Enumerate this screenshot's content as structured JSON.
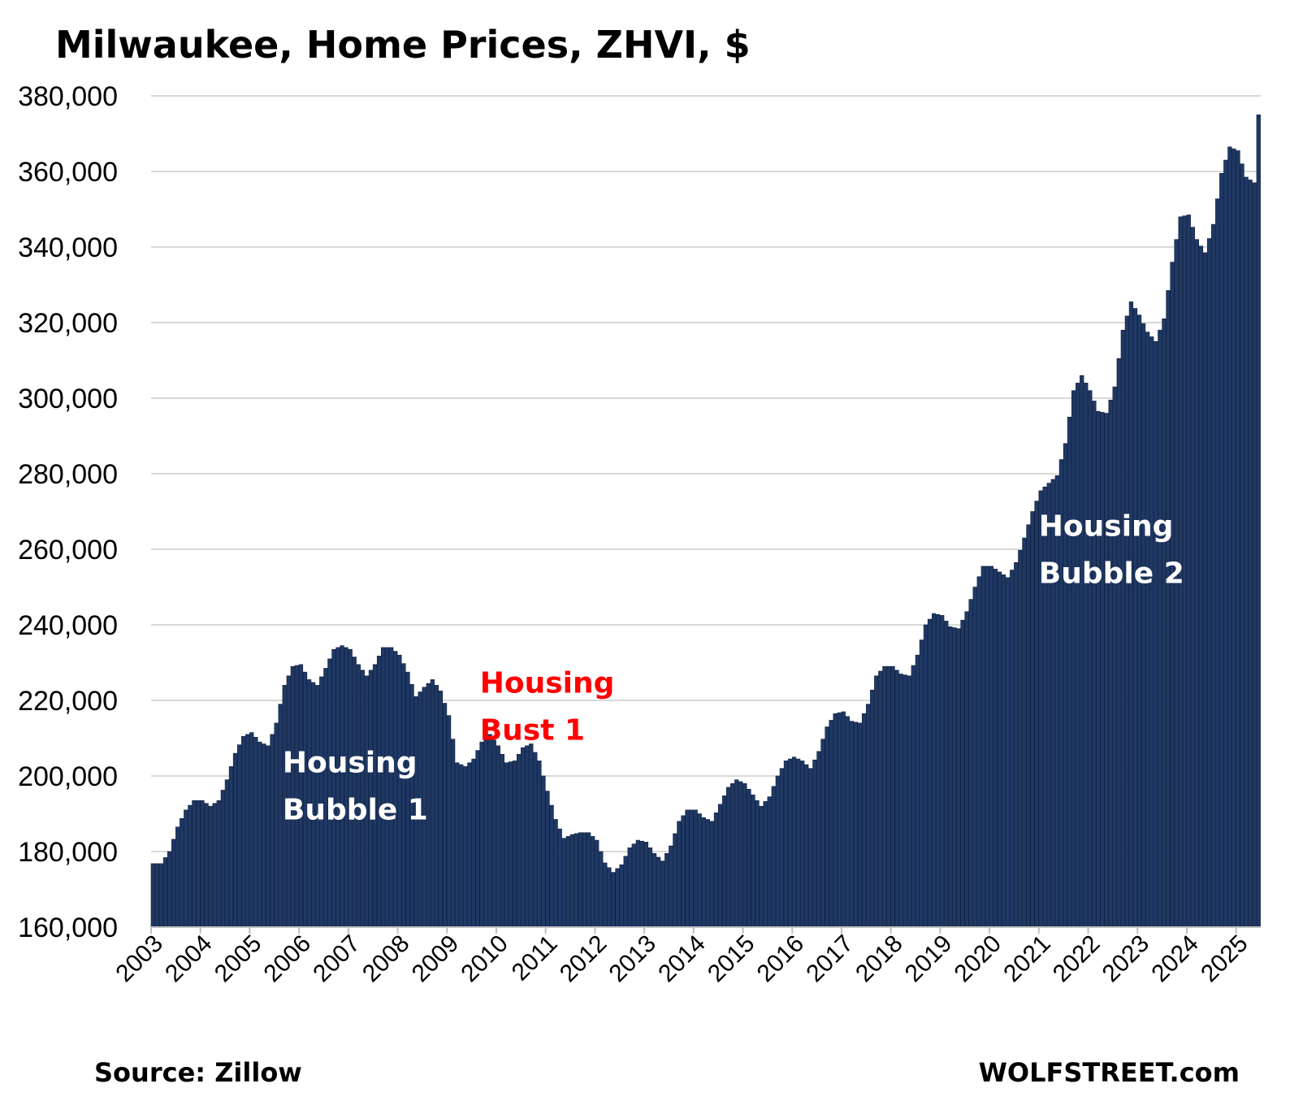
{
  "chart_data": {
    "type": "bar",
    "title": "Milwaukee, Home Prices, ZHVI, $",
    "ylim": [
      160000,
      380000
    ],
    "y_ticks": [
      160000,
      180000,
      200000,
      220000,
      240000,
      260000,
      280000,
      300000,
      320000,
      340000,
      360000,
      380000
    ],
    "y_tick_labels": [
      "160,000",
      "180,000",
      "200,000",
      "220,000",
      "240,000",
      "260,000",
      "280,000",
      "300,000",
      "320,000",
      "340,000",
      "360,000",
      "380,000"
    ],
    "x_tick_labels": [
      "2003",
      "2004",
      "2005",
      "2006",
      "2007",
      "2008",
      "2009",
      "2010",
      "2011",
      "2012",
      "2013",
      "2014",
      "2015",
      "2016",
      "2017",
      "2018",
      "2019",
      "2020",
      "2021",
      "2022",
      "2023",
      "2024",
      "2025"
    ],
    "grid": true,
    "legend": "none",
    "bar_color": "#1f3864",
    "x_range": [
      "2003-01",
      "2025-06"
    ],
    "series": [
      {
        "points": [
          [
            "2003-01",
            176800
          ],
          [
            "2003-03",
            176800
          ],
          [
            "2003-05",
            180000
          ],
          [
            "2003-07",
            186500
          ],
          [
            "2003-09",
            191000
          ],
          [
            "2003-11",
            193500
          ],
          [
            "2004-01",
            193500
          ],
          [
            "2004-03",
            192000
          ],
          [
            "2004-05",
            193500
          ],
          [
            "2004-07",
            199000
          ],
          [
            "2004-09",
            206000
          ],
          [
            "2004-11",
            210500
          ],
          [
            "2005-01",
            211500
          ],
          [
            "2005-03",
            209000
          ],
          [
            "2005-05",
            208000
          ],
          [
            "2005-07",
            214000
          ],
          [
            "2005-09",
            224000
          ],
          [
            "2005-11",
            229000
          ],
          [
            "2006-01",
            229500
          ],
          [
            "2006-03",
            225500
          ],
          [
            "2006-05",
            224000
          ],
          [
            "2006-07",
            228500
          ],
          [
            "2006-09",
            233500
          ],
          [
            "2006-11",
            234500
          ],
          [
            "2007-01",
            233500
          ],
          [
            "2007-03",
            229500
          ],
          [
            "2007-05",
            226500
          ],
          [
            "2007-07",
            229500
          ],
          [
            "2007-09",
            234000
          ],
          [
            "2007-11",
            234000
          ],
          [
            "2008-01",
            232000
          ],
          [
            "2008-03",
            227500
          ],
          [
            "2008-05",
            221000
          ],
          [
            "2008-07",
            223500
          ],
          [
            "2008-09",
            225500
          ],
          [
            "2008-11",
            222500
          ],
          [
            "2009-01",
            216000
          ],
          [
            "2009-03",
            203500
          ],
          [
            "2009-05",
            202500
          ],
          [
            "2009-07",
            204500
          ],
          [
            "2009-09",
            209000
          ],
          [
            "2009-11",
            211000
          ],
          [
            "2010-01",
            208000
          ],
          [
            "2010-03",
            203500
          ],
          [
            "2010-05",
            204000
          ],
          [
            "2010-07",
            207500
          ],
          [
            "2010-09",
            208500
          ],
          [
            "2010-11",
            204000
          ],
          [
            "2011-01",
            196000
          ],
          [
            "2011-03",
            188500
          ],
          [
            "2011-05",
            183500
          ],
          [
            "2011-07",
            184500
          ],
          [
            "2011-09",
            185000
          ],
          [
            "2011-11",
            185000
          ],
          [
            "2012-01",
            183000
          ],
          [
            "2012-03",
            177000
          ],
          [
            "2012-05",
            174500
          ],
          [
            "2012-07",
            176500
          ],
          [
            "2012-09",
            181000
          ],
          [
            "2012-11",
            183000
          ],
          [
            "2013-01",
            182500
          ],
          [
            "2013-03",
            179500
          ],
          [
            "2013-05",
            177500
          ],
          [
            "2013-07",
            181500
          ],
          [
            "2013-09",
            188000
          ],
          [
            "2013-11",
            191000
          ],
          [
            "2014-01",
            191000
          ],
          [
            "2014-03",
            189000
          ],
          [
            "2014-05",
            188000
          ],
          [
            "2014-07",
            192500
          ],
          [
            "2014-09",
            197000
          ],
          [
            "2014-11",
            199000
          ],
          [
            "2015-01",
            198000
          ],
          [
            "2015-03",
            195000
          ],
          [
            "2015-05",
            192000
          ],
          [
            "2015-07",
            194500
          ],
          [
            "2015-09",
            200000
          ],
          [
            "2015-11",
            204000
          ],
          [
            "2016-01",
            205000
          ],
          [
            "2016-03",
            204000
          ],
          [
            "2016-05",
            202000
          ],
          [
            "2016-07",
            206500
          ],
          [
            "2016-09",
            213000
          ],
          [
            "2016-11",
            216500
          ],
          [
            "2017-01",
            217000
          ],
          [
            "2017-03",
            214500
          ],
          [
            "2017-05",
            214000
          ],
          [
            "2017-07",
            219000
          ],
          [
            "2017-09",
            226500
          ],
          [
            "2017-11",
            229000
          ],
          [
            "2018-01",
            229000
          ],
          [
            "2018-03",
            227000
          ],
          [
            "2018-05",
            226500
          ],
          [
            "2018-07",
            232000
          ],
          [
            "2018-09",
            240000
          ],
          [
            "2018-11",
            243000
          ],
          [
            "2019-01",
            242500
          ],
          [
            "2019-03",
            239500
          ],
          [
            "2019-05",
            239000
          ],
          [
            "2019-07",
            243500
          ],
          [
            "2019-09",
            250000
          ],
          [
            "2019-11",
            255500
          ],
          [
            "2020-01",
            255500
          ],
          [
            "2020-03",
            254000
          ],
          [
            "2020-05",
            252500
          ],
          [
            "2020-07",
            256500
          ],
          [
            "2020-09",
            263000
          ],
          [
            "2020-11",
            270000
          ],
          [
            "2021-01",
            275500
          ],
          [
            "2021-03",
            277500
          ],
          [
            "2021-05",
            279500
          ],
          [
            "2021-07",
            288000
          ],
          [
            "2021-09",
            302000
          ],
          [
            "2021-11",
            306000
          ],
          [
            "2022-01",
            302000
          ],
          [
            "2022-03",
            296500
          ],
          [
            "2022-05",
            296000
          ],
          [
            "2022-07",
            303000
          ],
          [
            "2022-09",
            318000
          ],
          [
            "2022-11",
            325500
          ],
          [
            "2023-01",
            322000
          ],
          [
            "2023-03",
            317500
          ],
          [
            "2023-05",
            315000
          ],
          [
            "2023-07",
            321000
          ],
          [
            "2023-09",
            336000
          ],
          [
            "2023-11",
            348000
          ],
          [
            "2024-01",
            348500
          ],
          [
            "2024-03",
            342000
          ],
          [
            "2024-05",
            338500
          ],
          [
            "2024-07",
            346000
          ],
          [
            "2024-09",
            359500
          ],
          [
            "2024-11",
            366500
          ],
          [
            "2025-01",
            365500
          ],
          [
            "2025-03",
            358500
          ],
          [
            "2025-05",
            357000
          ],
          [
            "2025-06",
            375000
          ]
        ]
      }
    ],
    "annotations": [
      {
        "text_lines": [
          "Housing",
          "Bubble 1"
        ],
        "color": "#ffffff",
        "at": [
          "2005-09",
          201000
        ]
      },
      {
        "text_lines": [
          "Housing",
          "Bust 1"
        ],
        "color": "#ff0000",
        "at": [
          "2009-09",
          222000
        ]
      },
      {
        "text_lines": [
          "Housing",
          "Bubble 2"
        ],
        "color": "#ffffff",
        "at": [
          "2021-01",
          263500
        ]
      }
    ]
  },
  "footer": {
    "source": "Source: Zillow",
    "brand": "WOLFSTREET.com"
  }
}
